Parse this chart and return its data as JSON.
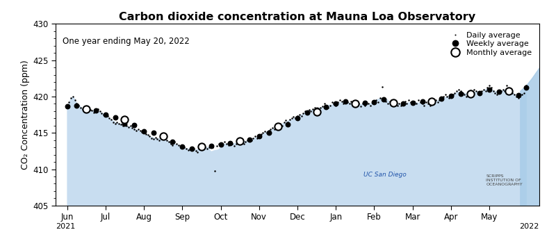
{
  "title": "Carbon dioxide concentration at Mauna Loa Observatory",
  "subtitle": "One year ending May 20, 2022",
  "ylabel": "CO₂ Concentration (ppm)",
  "ylim": [
    405,
    430
  ],
  "yticks": [
    405,
    410,
    415,
    420,
    425,
    430
  ],
  "month_labels": [
    "Jun",
    "Jul",
    "Aug",
    "Sep",
    "Oct",
    "Nov",
    "Dec",
    "Jan",
    "Feb",
    "Mar",
    "Apr",
    "May"
  ],
  "year_labels": [
    "2021",
    "2022"
  ],
  "background_color": "#ffffff",
  "fill_color": "#c8ddf0",
  "legend_labels": [
    "Daily average",
    "Weekly average",
    "Monthly average"
  ],
  "daily_data": [
    [
      0.0,
      418.5
    ],
    [
      0.05,
      419.2
    ],
    [
      0.1,
      419.8
    ],
    [
      0.15,
      420.0
    ],
    [
      0.2,
      419.5
    ],
    [
      0.25,
      419.0
    ],
    [
      0.3,
      418.8
    ],
    [
      0.35,
      418.5
    ],
    [
      0.4,
      418.3
    ],
    [
      0.45,
      418.1
    ],
    [
      0.5,
      417.9
    ],
    [
      0.55,
      418.0
    ],
    [
      0.6,
      418.2
    ],
    [
      0.65,
      418.1
    ],
    [
      0.7,
      417.8
    ],
    [
      0.75,
      418.0
    ],
    [
      0.8,
      418.3
    ],
    [
      0.85,
      418.0
    ],
    [
      0.9,
      417.7
    ],
    [
      0.95,
      417.5
    ],
    [
      1.0,
      417.5
    ],
    [
      1.05,
      417.3
    ],
    [
      1.1,
      417.0
    ],
    [
      1.15,
      416.8
    ],
    [
      1.2,
      416.5
    ],
    [
      1.25,
      416.3
    ],
    [
      1.3,
      416.5
    ],
    [
      1.35,
      416.3
    ],
    [
      1.4,
      416.2
    ],
    [
      1.45,
      416.0
    ],
    [
      1.5,
      416.2
    ],
    [
      1.55,
      416.0
    ],
    [
      1.6,
      415.8
    ],
    [
      1.65,
      416.0
    ],
    [
      1.7,
      415.7
    ],
    [
      1.75,
      415.5
    ],
    [
      1.8,
      415.3
    ],
    [
      1.85,
      415.5
    ],
    [
      1.9,
      415.3
    ],
    [
      1.95,
      415.1
    ],
    [
      2.0,
      415.0
    ],
    [
      2.05,
      414.8
    ],
    [
      2.1,
      414.7
    ],
    [
      2.15,
      414.5
    ],
    [
      2.2,
      414.3
    ],
    [
      2.25,
      414.2
    ],
    [
      2.3,
      414.4
    ],
    [
      2.35,
      414.2
    ],
    [
      2.4,
      414.0
    ],
    [
      2.45,
      414.3
    ],
    [
      2.5,
      414.5
    ],
    [
      2.55,
      414.3
    ],
    [
      2.6,
      414.0
    ],
    [
      2.65,
      413.8
    ],
    [
      2.7,
      413.5
    ],
    [
      2.75,
      413.3
    ],
    [
      2.8,
      413.8
    ],
    [
      2.85,
      413.5
    ],
    [
      2.9,
      413.3
    ],
    [
      2.95,
      413.0
    ],
    [
      3.0,
      413.2
    ],
    [
      3.05,
      413.0
    ],
    [
      3.1,
      412.8
    ],
    [
      3.15,
      412.6
    ],
    [
      3.2,
      412.7
    ],
    [
      3.25,
      413.0
    ],
    [
      3.3,
      412.8
    ],
    [
      3.35,
      412.5
    ],
    [
      3.4,
      412.3
    ],
    [
      3.45,
      412.8
    ],
    [
      3.5,
      413.0
    ],
    [
      3.55,
      413.2
    ],
    [
      3.6,
      413.0
    ],
    [
      3.65,
      412.8
    ],
    [
      3.7,
      413.0
    ],
    [
      3.75,
      413.2
    ],
    [
      3.8,
      413.0
    ],
    [
      3.85,
      409.8
    ],
    [
      3.9,
      413.2
    ],
    [
      3.95,
      413.5
    ],
    [
      4.0,
      413.3
    ],
    [
      4.05,
      413.5
    ],
    [
      4.1,
      413.8
    ],
    [
      4.15,
      413.5
    ],
    [
      4.2,
      413.3
    ],
    [
      4.25,
      413.7
    ],
    [
      4.3,
      413.5
    ],
    [
      4.35,
      413.2
    ],
    [
      4.4,
      413.5
    ],
    [
      4.45,
      413.8
    ],
    [
      4.5,
      414.0
    ],
    [
      4.55,
      413.8
    ],
    [
      4.6,
      413.5
    ],
    [
      4.65,
      413.8
    ],
    [
      4.7,
      414.0
    ],
    [
      4.75,
      414.2
    ],
    [
      4.8,
      414.0
    ],
    [
      4.85,
      414.3
    ],
    [
      4.9,
      414.5
    ],
    [
      4.95,
      414.3
    ],
    [
      5.0,
      414.5
    ],
    [
      5.05,
      414.8
    ],
    [
      5.1,
      415.0
    ],
    [
      5.15,
      415.2
    ],
    [
      5.2,
      415.0
    ],
    [
      5.25,
      415.3
    ],
    [
      5.3,
      415.5
    ],
    [
      5.35,
      415.7
    ],
    [
      5.4,
      415.5
    ],
    [
      5.45,
      415.8
    ],
    [
      5.5,
      416.0
    ],
    [
      5.55,
      416.3
    ],
    [
      5.6,
      416.0
    ],
    [
      5.65,
      416.5
    ],
    [
      5.7,
      416.7
    ],
    [
      5.75,
      416.5
    ],
    [
      5.8,
      416.8
    ],
    [
      5.85,
      417.0
    ],
    [
      5.9,
      417.2
    ],
    [
      5.95,
      417.0
    ],
    [
      6.0,
      417.3
    ],
    [
      6.05,
      417.5
    ],
    [
      6.1,
      417.3
    ],
    [
      6.15,
      417.7
    ],
    [
      6.2,
      418.0
    ],
    [
      6.25,
      417.8
    ],
    [
      6.3,
      418.2
    ],
    [
      6.35,
      418.0
    ],
    [
      6.4,
      418.3
    ],
    [
      6.45,
      418.5
    ],
    [
      6.5,
      418.3
    ],
    [
      6.55,
      418.0
    ],
    [
      6.6,
      418.5
    ],
    [
      6.65,
      418.7
    ],
    [
      6.7,
      419.0
    ],
    [
      6.75,
      418.8
    ],
    [
      6.8,
      418.5
    ],
    [
      6.85,
      418.8
    ],
    [
      6.9,
      419.2
    ],
    [
      6.95,
      419.0
    ],
    [
      7.0,
      418.8
    ],
    [
      7.05,
      419.2
    ],
    [
      7.1,
      419.5
    ],
    [
      7.15,
      419.3
    ],
    [
      7.2,
      419.0
    ],
    [
      7.25,
      419.5
    ],
    [
      7.3,
      419.2
    ],
    [
      7.35,
      419.0
    ],
    [
      7.4,
      419.3
    ],
    [
      7.45,
      419.0
    ],
    [
      7.5,
      418.8
    ],
    [
      7.55,
      419.2
    ],
    [
      7.6,
      419.0
    ],
    [
      7.65,
      418.7
    ],
    [
      7.7,
      419.0
    ],
    [
      7.75,
      418.8
    ],
    [
      7.8,
      419.2
    ],
    [
      7.85,
      419.0
    ],
    [
      7.9,
      418.8
    ],
    [
      7.95,
      419.2
    ],
    [
      8.0,
      419.0
    ],
    [
      8.05,
      419.5
    ],
    [
      8.1,
      419.2
    ],
    [
      8.15,
      419.8
    ],
    [
      8.2,
      421.3
    ],
    [
      8.25,
      419.5
    ],
    [
      8.3,
      419.3
    ],
    [
      8.35,
      419.0
    ],
    [
      8.4,
      419.3
    ],
    [
      8.45,
      419.5
    ],
    [
      8.5,
      419.2
    ],
    [
      8.55,
      419.0
    ],
    [
      8.6,
      418.8
    ],
    [
      8.65,
      419.0
    ],
    [
      8.7,
      418.8
    ],
    [
      8.75,
      419.0
    ],
    [
      8.8,
      419.3
    ],
    [
      8.85,
      419.0
    ],
    [
      8.9,
      419.5
    ],
    [
      8.95,
      419.2
    ],
    [
      9.0,
      419.0
    ],
    [
      9.05,
      419.3
    ],
    [
      9.1,
      419.0
    ],
    [
      9.15,
      419.5
    ],
    [
      9.2,
      419.2
    ],
    [
      9.25,
      419.0
    ],
    [
      9.3,
      418.8
    ],
    [
      9.35,
      419.2
    ],
    [
      9.4,
      419.0
    ],
    [
      9.45,
      418.8
    ],
    [
      9.5,
      419.0
    ],
    [
      9.55,
      419.3
    ],
    [
      9.6,
      419.5
    ],
    [
      9.65,
      419.2
    ],
    [
      9.7,
      419.5
    ],
    [
      9.75,
      419.8
    ],
    [
      9.8,
      420.0
    ],
    [
      9.85,
      420.3
    ],
    [
      9.9,
      420.0
    ],
    [
      9.95,
      419.8
    ],
    [
      10.0,
      420.0
    ],
    [
      10.05,
      420.3
    ],
    [
      10.1,
      420.5
    ],
    [
      10.15,
      420.8
    ],
    [
      10.2,
      421.0
    ],
    [
      10.25,
      420.8
    ],
    [
      10.3,
      420.5
    ],
    [
      10.35,
      420.3
    ],
    [
      10.4,
      420.0
    ],
    [
      10.45,
      420.3
    ],
    [
      10.5,
      420.5
    ],
    [
      10.55,
      420.8
    ],
    [
      10.6,
      421.0
    ],
    [
      10.65,
      420.8
    ],
    [
      10.7,
      420.5
    ],
    [
      10.75,
      420.3
    ],
    [
      10.8,
      420.8
    ],
    [
      10.85,
      421.0
    ],
    [
      10.9,
      420.8
    ],
    [
      10.95,
      421.2
    ],
    [
      11.0,
      421.5
    ],
    [
      11.05,
      421.2
    ],
    [
      11.1,
      420.8
    ],
    [
      11.15,
      420.5
    ],
    [
      11.2,
      420.3
    ],
    [
      11.25,
      420.5
    ],
    [
      11.3,
      420.8
    ],
    [
      11.35,
      421.0
    ],
    [
      11.4,
      420.8
    ],
    [
      11.45,
      421.5
    ],
    [
      11.5,
      421.0
    ],
    [
      11.55,
      420.8
    ],
    [
      11.6,
      420.5
    ],
    [
      11.65,
      420.3
    ],
    [
      11.7,
      420.0
    ],
    [
      11.75,
      419.8
    ],
    [
      11.8,
      420.0
    ],
    [
      11.85,
      420.3
    ],
    [
      11.9,
      420.5
    ],
    [
      11.95,
      421.5
    ]
  ],
  "weekly_data": [
    [
      0.0,
      418.7
    ],
    [
      0.25,
      418.8
    ],
    [
      0.5,
      418.2
    ],
    [
      0.75,
      418.1
    ],
    [
      1.0,
      417.5
    ],
    [
      1.25,
      417.1
    ],
    [
      1.5,
      416.3
    ],
    [
      1.75,
      416.1
    ],
    [
      2.0,
      415.2
    ],
    [
      2.25,
      415.0
    ],
    [
      2.5,
      414.5
    ],
    [
      2.75,
      413.8
    ],
    [
      3.0,
      413.1
    ],
    [
      3.25,
      412.8
    ],
    [
      3.5,
      413.1
    ],
    [
      3.75,
      413.2
    ],
    [
      4.0,
      413.4
    ],
    [
      4.25,
      413.6
    ],
    [
      4.5,
      413.8
    ],
    [
      4.75,
      414.1
    ],
    [
      5.0,
      414.5
    ],
    [
      5.25,
      415.0
    ],
    [
      5.5,
      415.8
    ],
    [
      5.75,
      416.2
    ],
    [
      6.0,
      417.0
    ],
    [
      6.25,
      417.8
    ],
    [
      6.5,
      418.2
    ],
    [
      6.75,
      418.6
    ],
    [
      7.0,
      419.0
    ],
    [
      7.25,
      419.3
    ],
    [
      7.5,
      418.9
    ],
    [
      7.75,
      419.1
    ],
    [
      8.0,
      419.2
    ],
    [
      8.25,
      419.6
    ],
    [
      8.5,
      419.2
    ],
    [
      8.75,
      419.0
    ],
    [
      9.0,
      419.1
    ],
    [
      9.25,
      419.3
    ],
    [
      9.5,
      419.2
    ],
    [
      9.75,
      419.7
    ],
    [
      10.0,
      420.1
    ],
    [
      10.25,
      420.4
    ],
    [
      10.5,
      420.6
    ],
    [
      10.75,
      420.5
    ],
    [
      11.0,
      421.0
    ],
    [
      11.25,
      420.7
    ],
    [
      11.5,
      420.8
    ],
    [
      11.75,
      420.2
    ],
    [
      11.95,
      421.2
    ]
  ],
  "monthly_data": [
    [
      0.5,
      418.3
    ],
    [
      1.5,
      416.8
    ],
    [
      2.5,
      414.5
    ],
    [
      3.5,
      413.1
    ],
    [
      4.5,
      413.9
    ],
    [
      5.5,
      415.9
    ],
    [
      6.5,
      417.9
    ],
    [
      7.5,
      419.0
    ],
    [
      8.5,
      419.1
    ],
    [
      9.5,
      419.3
    ],
    [
      10.5,
      420.4
    ],
    [
      11.5,
      420.8
    ]
  ]
}
